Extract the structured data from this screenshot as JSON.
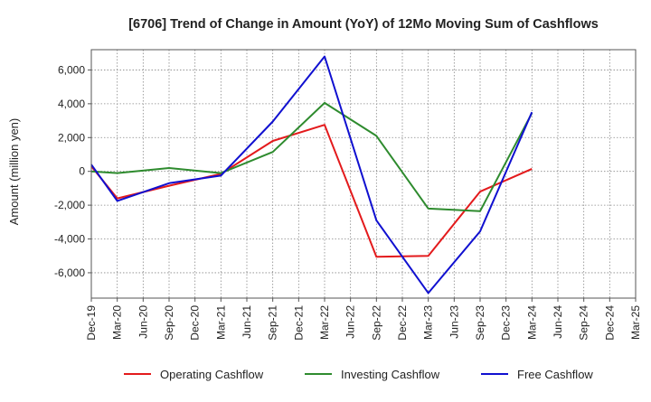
{
  "chart_data": {
    "type": "line",
    "title": "[6706]  Trend of Change in Amount (YoY) of 12Mo Moving Sum of Cashflows",
    "xlabel": "",
    "ylabel": "Amount (million yen)",
    "categories": [
      "Dec-19",
      "Mar-20",
      "Jun-20",
      "Sep-20",
      "Dec-20",
      "Mar-21",
      "Jun-21",
      "Sep-21",
      "Dec-21",
      "Mar-22",
      "Jun-22",
      "Sep-22",
      "Dec-22",
      "Mar-23",
      "Jun-23",
      "Sep-23",
      "Dec-23",
      "Mar-24",
      "Jun-24",
      "Sep-24",
      "Dec-24",
      "Mar-25"
    ],
    "ylim": [
      -7500,
      7200
    ],
    "yticks": [
      -6000,
      -4000,
      -2000,
      0,
      2000,
      4000,
      6000
    ],
    "ytick_labels": [
      "-6,000",
      "-4,000",
      "-2,000",
      "0",
      "2,000",
      "4,000",
      "6,000"
    ],
    "grid": true,
    "legend_position": "bottom",
    "series": [
      {
        "name": "Operating Cashflow",
        "color": "#e31a1c",
        "values": [
          300,
          -1600,
          null,
          -850,
          null,
          -150,
          null,
          1800,
          null,
          2750,
          null,
          -5050,
          null,
          -5000,
          null,
          -1200,
          null,
          150,
          null,
          null,
          null,
          null
        ]
      },
      {
        "name": "Investing Cashflow",
        "color": "#2e8b2e",
        "values": [
          0,
          -100,
          null,
          200,
          null,
          -100,
          null,
          1150,
          null,
          4050,
          null,
          2100,
          null,
          -2200,
          null,
          -2350,
          null,
          3450,
          null,
          null,
          null,
          null
        ]
      },
      {
        "name": "Free Cashflow",
        "color": "#1010d0",
        "values": [
          400,
          -1750,
          null,
          -700,
          null,
          -250,
          null,
          2950,
          null,
          6800,
          null,
          -2900,
          null,
          -7200,
          null,
          -3550,
          null,
          3500,
          null,
          null,
          null,
          null
        ]
      }
    ]
  }
}
